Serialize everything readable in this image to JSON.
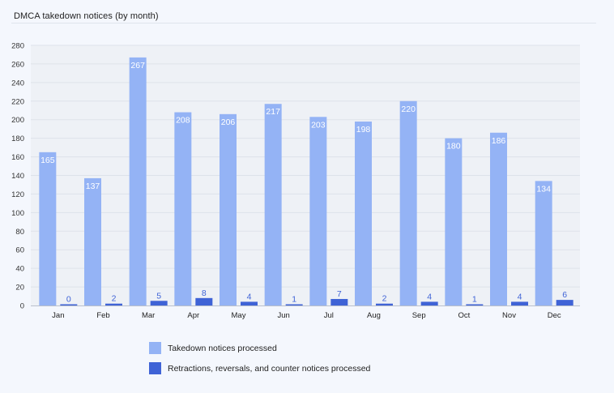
{
  "chart_data": {
    "type": "bar",
    "title": "DMCA takedown notices (by month)",
    "xlabel": "",
    "ylabel": "",
    "categories": [
      "Jan",
      "Feb",
      "Mar",
      "Apr",
      "May",
      "Jun",
      "Jul",
      "Aug",
      "Sep",
      "Oct",
      "Nov",
      "Dec"
    ],
    "series": [
      {
        "name": "Takedown notices processed",
        "color": "#94b3f5",
        "values": [
          165,
          137,
          267,
          208,
          206,
          217,
          203,
          198,
          220,
          180,
          186,
          134
        ]
      },
      {
        "name": "Retractions, reversals, and counter notices processed",
        "color": "#3f63d6",
        "values": [
          0,
          2,
          5,
          8,
          4,
          1,
          7,
          2,
          4,
          1,
          4,
          6
        ]
      }
    ],
    "ylim": [
      0,
      280
    ],
    "yticks": [
      0,
      20,
      40,
      60,
      80,
      100,
      120,
      140,
      160,
      180,
      200,
      220,
      240,
      260,
      280
    ],
    "grid": true,
    "legend_position": "bottom-left"
  }
}
